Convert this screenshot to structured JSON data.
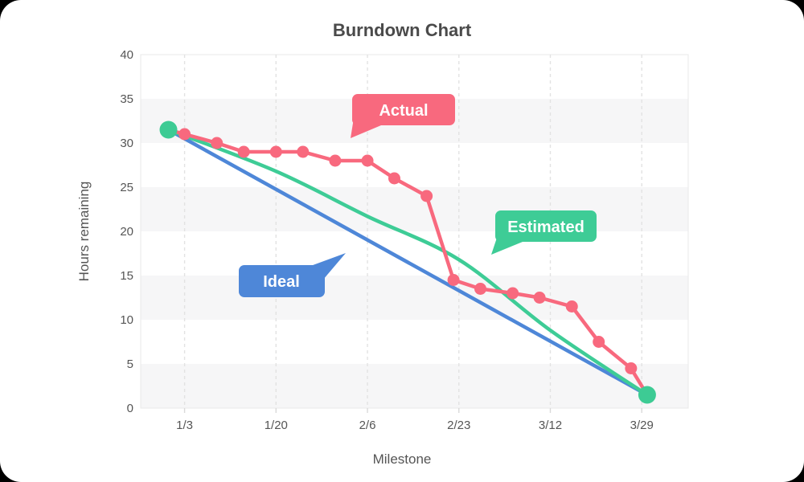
{
  "window": {
    "title": "Burndown Chart"
  },
  "chart_data": {
    "type": "line",
    "title": "Burndown Chart",
    "xlabel": "Milestone",
    "ylabel": "Hours remaining",
    "ylim": [
      0,
      40
    ],
    "y_tick_step": 5,
    "y_tick_labels": [
      "0",
      "5",
      "10",
      "15",
      "20",
      "25",
      "30",
      "35",
      "40"
    ],
    "x_ticks": [
      {
        "day": 3,
        "label": "1/3"
      },
      {
        "day": 20,
        "label": "1/20"
      },
      {
        "day": 37,
        "label": "2/6"
      },
      {
        "day": 54,
        "label": "2/23"
      },
      {
        "day": 71,
        "label": "3/12"
      },
      {
        "day": 88,
        "label": "3/29"
      }
    ],
    "grid": "vertical-dashed",
    "background_bands": {
      "color": "#f6f6f7",
      "value_ranges": [
        [
          30,
          35
        ],
        [
          20,
          25
        ],
        [
          10,
          15
        ],
        [
          0,
          5
        ]
      ]
    },
    "series": [
      {
        "name": "Ideal",
        "color": "#4e87d8",
        "shape": "straight",
        "show_points": false,
        "points": [
          {
            "day": 0,
            "value": 31.5
          },
          {
            "day": 89,
            "value": 1.5
          }
        ]
      },
      {
        "name": "Estimated",
        "color": "#3ecc96",
        "shape": "smooth",
        "show_points": false,
        "points": [
          {
            "day": 0,
            "value": 31.5
          },
          {
            "day": 20,
            "value": 26.8
          },
          {
            "day": 37,
            "value": 21.7
          },
          {
            "day": 54,
            "value": 16.8
          },
          {
            "day": 71,
            "value": 8.8
          },
          {
            "day": 89,
            "value": 1.5
          }
        ]
      },
      {
        "name": "Actual",
        "color": "#f8697e",
        "shape": "linear",
        "show_points": true,
        "points": [
          {
            "day": 0,
            "value": 31.5
          },
          {
            "day": 3,
            "value": 31
          },
          {
            "day": 9,
            "value": 30
          },
          {
            "day": 14,
            "value": 29
          },
          {
            "day": 20,
            "value": 29
          },
          {
            "day": 25,
            "value": 29
          },
          {
            "day": 31,
            "value": 28
          },
          {
            "day": 37,
            "value": 28
          },
          {
            "day": 42,
            "value": 26
          },
          {
            "day": 48,
            "value": 24
          },
          {
            "day": 53,
            "value": 14.5
          },
          {
            "day": 58,
            "value": 13.5
          },
          {
            "day": 64,
            "value": 13
          },
          {
            "day": 69,
            "value": 12.5
          },
          {
            "day": 75,
            "value": 11.5
          },
          {
            "day": 80,
            "value": 7.5
          },
          {
            "day": 86,
            "value": 4.5
          },
          {
            "day": 89,
            "value": 1.5
          }
        ]
      }
    ],
    "endpoint_markers": {
      "color": "#3dcb94",
      "points": [
        {
          "day": 0,
          "value": 31.5
        },
        {
          "day": 89,
          "value": 1.5
        }
      ]
    },
    "annotations": [
      {
        "label": "Actual",
        "color": "#f8697e"
      },
      {
        "label": "Estimated",
        "color": "#3ecc96"
      },
      {
        "label": "Ideal",
        "color": "#4e87d8"
      }
    ]
  }
}
